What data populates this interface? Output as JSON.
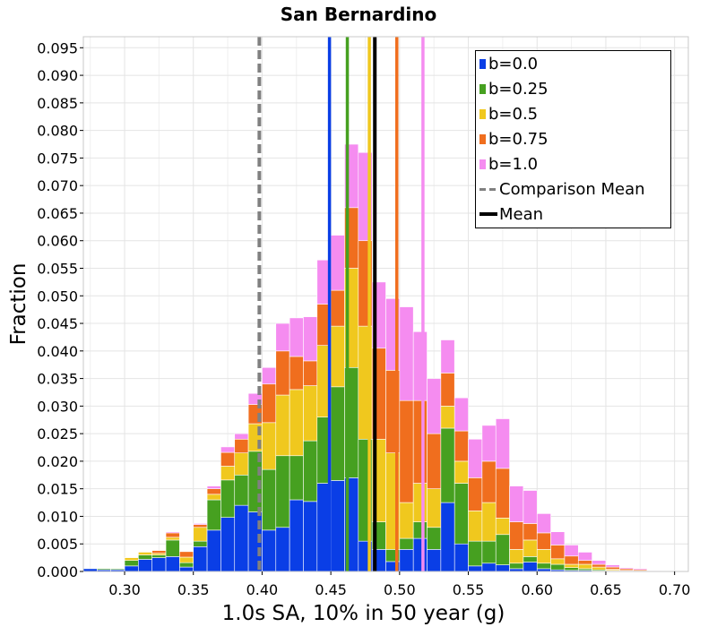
{
  "chart_data": {
    "type": "bar",
    "stacked": true,
    "title": "San Bernardino",
    "xlabel": "1.0s SA, 10% in 50 year (g)",
    "ylabel": "Fraction",
    "xlim": [
      0.27,
      0.71
    ],
    "ylim": [
      0,
      0.097
    ],
    "xticks": [
      0.3,
      0.35,
      0.4,
      0.45,
      0.5,
      0.55,
      0.6,
      0.65,
      0.7
    ],
    "xtick_labels": [
      "0.30",
      "0.35",
      "0.40",
      "0.45",
      "0.50",
      "0.55",
      "0.60",
      "0.65",
      "0.70"
    ],
    "yticks": [
      0.0,
      0.005,
      0.01,
      0.015,
      0.02,
      0.025,
      0.03,
      0.035,
      0.04,
      0.045,
      0.05,
      0.055,
      0.06,
      0.065,
      0.07,
      0.075,
      0.08,
      0.085,
      0.09,
      0.095
    ],
    "ytick_labels": [
      "0.000",
      "0.005",
      "0.010",
      "0.015",
      "0.020",
      "0.025",
      "0.030",
      "0.035",
      "0.040",
      "0.045",
      "0.050",
      "0.055",
      "0.060",
      "0.065",
      "0.070",
      "0.075",
      "0.080",
      "0.085",
      "0.090",
      "0.095"
    ],
    "bin_width": 0.01,
    "bin_left_edges": [
      0.27,
      0.28,
      0.29,
      0.3,
      0.31,
      0.32,
      0.33,
      0.34,
      0.35,
      0.36,
      0.37,
      0.38,
      0.39,
      0.4,
      0.41,
      0.42,
      0.43,
      0.44,
      0.45,
      0.46,
      0.47,
      0.48,
      0.49,
      0.5,
      0.51,
      0.52,
      0.53,
      0.54,
      0.55,
      0.56,
      0.57,
      0.58,
      0.59,
      0.6,
      0.61,
      0.62,
      0.63,
      0.64,
      0.65,
      0.66,
      0.67,
      0.68,
      0.69,
      0.7
    ],
    "series": [
      {
        "name": "b=0.0",
        "color": "#0a3ee6",
        "values": [
          0.0005,
          0.0003,
          0.0003,
          0.001,
          0.0022,
          0.0025,
          0.0027,
          0.0008,
          0.0045,
          0.0075,
          0.0098,
          0.012,
          0.0108,
          0.0075,
          0.008,
          0.013,
          0.0127,
          0.016,
          0.0165,
          0.017,
          0.0055,
          0.004,
          0.0018,
          0.004,
          0.006,
          0.004,
          0.0125,
          0.005,
          0.001,
          0.0015,
          0.0012,
          0.0005,
          0.0017,
          0.0005,
          0.0003,
          0.0002,
          0.0002,
          0.0001,
          0.0001,
          0,
          0,
          0,
          0,
          0
        ]
      },
      {
        "name": "b=0.25",
        "color": "#46a020",
        "values": [
          0,
          0.0002,
          0.0002,
          0.001,
          0.0008,
          0.0005,
          0.003,
          0.0008,
          0.001,
          0.0055,
          0.0068,
          0.0055,
          0.011,
          0.011,
          0.013,
          0.008,
          0.011,
          0.012,
          0.017,
          0.02,
          0.0185,
          0.005,
          0.0022,
          0.002,
          0.003,
          0.004,
          0.0135,
          0.011,
          0.0045,
          0.004,
          0.0055,
          0.001,
          0.001,
          0.001,
          0.001,
          0.0005,
          0.0003,
          0.0002,
          0.0001,
          0.0001,
          0,
          0,
          0,
          0
        ]
      },
      {
        "name": "b=0.5",
        "color": "#f0c81e",
        "values": [
          0,
          0,
          0.0001,
          0.0005,
          0.0005,
          0.0003,
          0.0005,
          0.001,
          0.0025,
          0.001,
          0.0025,
          0.004,
          0.005,
          0.0085,
          0.011,
          0.012,
          0.01,
          0.013,
          0.011,
          0.018,
          0.0205,
          0.015,
          0.0175,
          0.0065,
          0.007,
          0.007,
          0.004,
          0.004,
          0.0055,
          0.007,
          0.003,
          0.0025,
          0.003,
          0.0025,
          0.001,
          0.0006,
          0.0008,
          0.0005,
          0.0002,
          0.0001,
          0.0001,
          0,
          0,
          0
        ]
      },
      {
        "name": "b=0.75",
        "color": "#f06e1e",
        "values": [
          0,
          0,
          0,
          0,
          0,
          0.0005,
          0.0008,
          0.001,
          0.0005,
          0.001,
          0.0025,
          0.0025,
          0.0035,
          0.007,
          0.008,
          0.006,
          0.0045,
          0.0075,
          0.0065,
          0.011,
          0.0155,
          0.0165,
          0.015,
          0.0185,
          0.015,
          0.01,
          0.006,
          0.0055,
          0.006,
          0.0075,
          0.009,
          0.005,
          0.003,
          0.003,
          0.0025,
          0.0015,
          0.0007,
          0.0005,
          0.0004,
          0.0003,
          0.0002,
          0.0001,
          0,
          0
        ]
      },
      {
        "name": "b=1.0",
        "color": "#f58cf0",
        "values": [
          0,
          0,
          0,
          0,
          0,
          0,
          0.0002,
          0,
          0.0002,
          0.0005,
          0.001,
          0.001,
          0.002,
          0.003,
          0.005,
          0.007,
          0.008,
          0.008,
          0.01,
          0.0115,
          0.016,
          0.012,
          0.013,
          0.017,
          0.0125,
          0.01,
          0.006,
          0.006,
          0.007,
          0.0065,
          0.009,
          0.0065,
          0.006,
          0.0035,
          0.0024,
          0.002,
          0.0015,
          0.0007,
          0.0004,
          0.0002,
          0.0002,
          0.0001,
          0,
          0
        ]
      }
    ],
    "vertical_lines": [
      {
        "name": "b=0.0 mean",
        "x": 0.449,
        "color": "#0a3ee6",
        "style": "solid"
      },
      {
        "name": "b=0.25 mean",
        "x": 0.462,
        "color": "#46a020",
        "style": "solid"
      },
      {
        "name": "b=0.5 mean",
        "x": 0.478,
        "color": "#f0c81e",
        "style": "solid"
      },
      {
        "name": "b=0.75 mean",
        "x": 0.498,
        "color": "#f06e1e",
        "style": "solid"
      },
      {
        "name": "b=1.0 mean",
        "x": 0.517,
        "color": "#f58cf0",
        "style": "solid"
      },
      {
        "name": "Comparison Mean",
        "x": 0.398,
        "color": "#808080",
        "style": "dashed"
      },
      {
        "name": "Mean",
        "x": 0.482,
        "color": "#000000",
        "style": "solid"
      }
    ],
    "legend": {
      "position": "top-right",
      "items": [
        {
          "label": "b=0.0",
          "color": "#0a3ee6",
          "kind": "swatch"
        },
        {
          "label": "b=0.25",
          "color": "#46a020",
          "kind": "swatch"
        },
        {
          "label": "b=0.5",
          "color": "#f0c81e",
          "kind": "swatch"
        },
        {
          "label": "b=0.75",
          "color": "#f06e1e",
          "kind": "swatch"
        },
        {
          "label": "b=1.0",
          "color": "#f58cf0",
          "kind": "swatch"
        },
        {
          "label": "Comparison Mean",
          "color": "#808080",
          "kind": "dashed-line"
        },
        {
          "label": "Mean",
          "color": "#000000",
          "kind": "line"
        }
      ]
    },
    "grid": true
  }
}
